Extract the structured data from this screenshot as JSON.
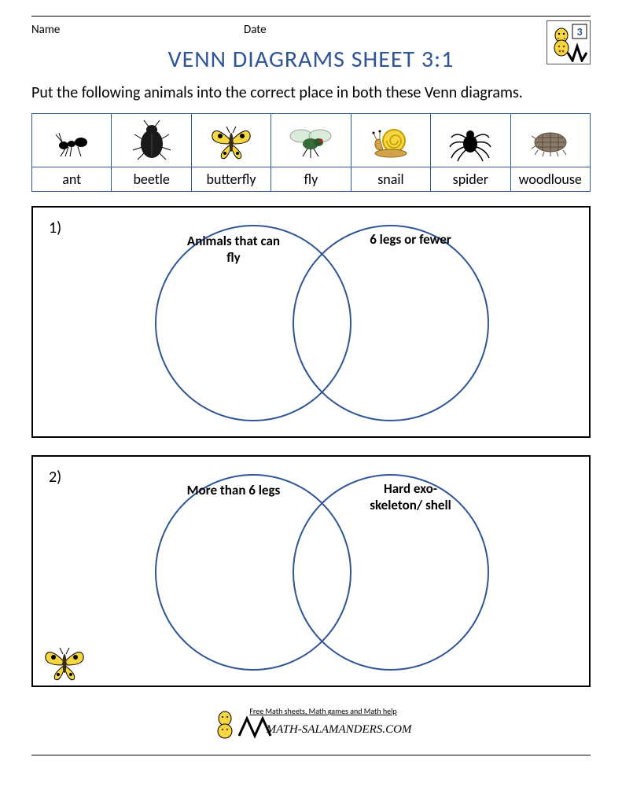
{
  "header": {
    "name_label": "Name",
    "date_label": "Date",
    "grade_badge": "3"
  },
  "title": "VENN DIAGRAMS SHEET 3:1",
  "instructions": "Put the following animals into the correct place in both these Venn diagrams.",
  "animals": [
    {
      "name": "ant"
    },
    {
      "name": "beetle"
    },
    {
      "name": "butterfly"
    },
    {
      "name": "fly"
    },
    {
      "name": "snail"
    },
    {
      "name": "spider"
    },
    {
      "name": "woodlouse"
    }
  ],
  "venn": [
    {
      "number": "1)",
      "left_label": "Animals that can fly",
      "right_label": "6 legs or fewer",
      "corner_butterfly": false
    },
    {
      "number": "2)",
      "left_label": "More than 6 legs",
      "right_label": "Hard exo-skeleton/ shell",
      "corner_butterfly": true
    }
  ],
  "footer": {
    "tagline": "Free Math sheets, Math games and Math help",
    "site": "MATH-SALAMANDERS.COM"
  },
  "colors": {
    "title": "#2f5596",
    "circle_stroke": "#2f5596",
    "border": "#000000"
  }
}
